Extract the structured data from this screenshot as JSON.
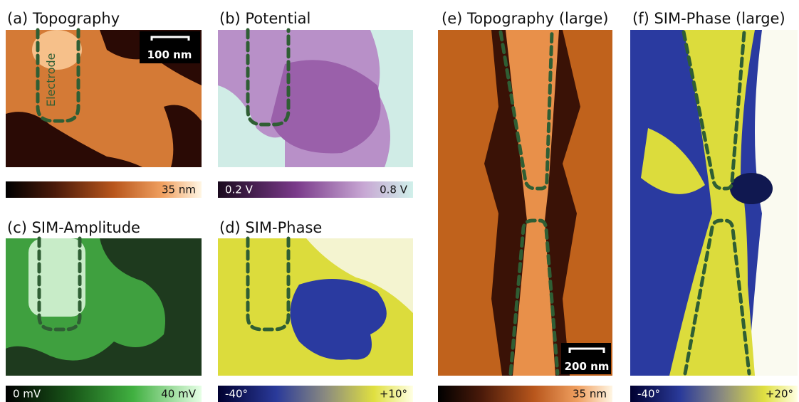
{
  "panels": [
    {
      "title": "(a) Topography",
      "scale_bar": "100 nm",
      "annotation": "Electrode",
      "colorbar_max": "35 nm"
    },
    {
      "title": "(b) Potential",
      "colorbar_min": "0.2 V",
      "colorbar_max": "0.8 V"
    },
    {
      "title": "(c) SIM-Amplitude",
      "colorbar_min": "0 mV",
      "colorbar_max": "40 mV"
    },
    {
      "title": "(d) SIM-Phase",
      "colorbar_min": "-40°",
      "colorbar_max": "+10°"
    },
    {
      "title": "(e) Topography (large)",
      "scale_bar": "200 nm",
      "colorbar_max": "35 nm"
    },
    {
      "title": "(f) SIM-Phase (large)",
      "colorbar_min": "-40°",
      "colorbar_max": "+20°"
    }
  ]
}
